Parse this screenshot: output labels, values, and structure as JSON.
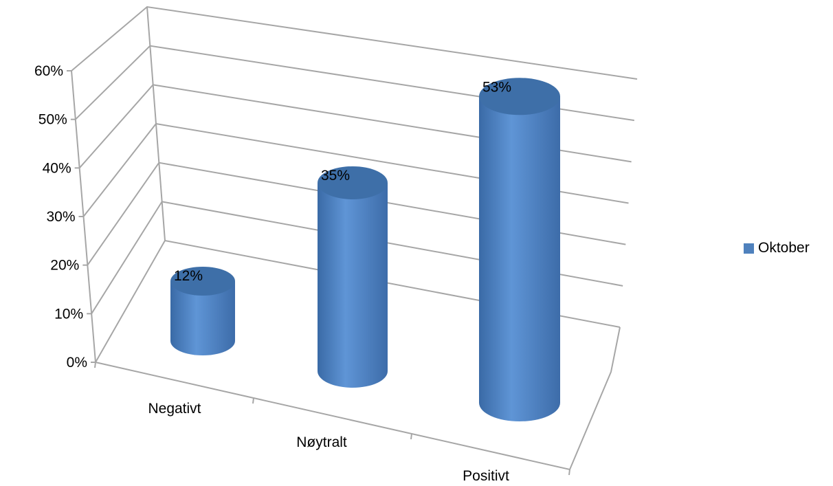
{
  "chart_data": {
    "type": "bar",
    "style": "3d-cylinder",
    "title": "",
    "xlabel": "",
    "ylabel": "",
    "categories": [
      "Negativt",
      "Nøytralt",
      "Positivt"
    ],
    "series": [
      {
        "name": "Oktober",
        "values": [
          12,
          35,
          53
        ],
        "color": "#4f81bd"
      }
    ],
    "data_labels": [
      "12%",
      "35%",
      "53%"
    ],
    "ylim": [
      0,
      60
    ],
    "y_ticks": [
      0,
      10,
      20,
      30,
      40,
      50,
      60
    ],
    "y_tick_labels": [
      "0%",
      "10%",
      "20%",
      "30%",
      "40%",
      "50%",
      "60%"
    ],
    "grid": true,
    "legend_position": "right",
    "colors": {
      "bar": "#4f81bd",
      "bar_top": "#3e6fa8",
      "grid": "#a6a6a6"
    }
  }
}
